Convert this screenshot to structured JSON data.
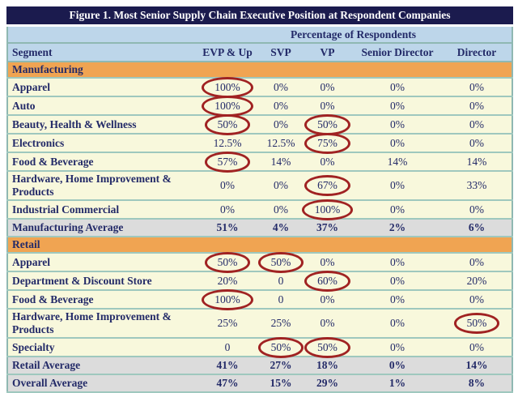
{
  "title": "Figure 1. Most Senior Supply Chain Executive Position at Respondent Companies",
  "header": {
    "group_label": "Percentage of Respondents",
    "columns": [
      "Segment",
      "EVP & Up",
      "SVP",
      "VP",
      "Senior Director",
      "Director"
    ]
  },
  "rows": [
    {
      "type": "section",
      "label": "Manufacturing"
    },
    {
      "type": "data",
      "label": "Apparel",
      "values": [
        "100%",
        "0%",
        "0%",
        "0%",
        "0%"
      ],
      "circled": [
        0
      ]
    },
    {
      "type": "data",
      "label": "Auto",
      "values": [
        "100%",
        "0%",
        "0%",
        "0%",
        "0%"
      ],
      "circled": [
        0
      ]
    },
    {
      "type": "data",
      "label": "Beauty, Health & Wellness",
      "values": [
        "50%",
        "0%",
        "50%",
        "0%",
        "0%"
      ],
      "circled": [
        0,
        2
      ]
    },
    {
      "type": "data",
      "label": "Electronics",
      "values": [
        "12.5%",
        "12.5%",
        "75%",
        "0%",
        "0%"
      ],
      "circled": [
        2
      ]
    },
    {
      "type": "data",
      "label": "Food & Beverage",
      "values": [
        "57%",
        "14%",
        "0%",
        "14%",
        "14%"
      ],
      "circled": [
        0
      ]
    },
    {
      "type": "data",
      "label": "Hardware, Home Improvement & Products",
      "values": [
        "0%",
        "0%",
        "67%",
        "0%",
        "33%"
      ],
      "circled": [
        2
      ]
    },
    {
      "type": "data",
      "label": "Industrial Commercial",
      "values": [
        "0%",
        "0%",
        "100%",
        "0%",
        "0%"
      ],
      "circled": [
        2
      ]
    },
    {
      "type": "average",
      "label": "Manufacturing Average",
      "values": [
        "51%",
        "4%",
        "37%",
        "2%",
        "6%"
      ],
      "circled": []
    },
    {
      "type": "section",
      "label": "Retail"
    },
    {
      "type": "data",
      "label": "Apparel",
      "values": [
        "50%",
        "50%",
        "0%",
        "0%",
        "0%"
      ],
      "circled": [
        0,
        1
      ]
    },
    {
      "type": "data",
      "label": "Department & Discount Store",
      "values": [
        "20%",
        "0",
        "60%",
        "0%",
        "20%"
      ],
      "circled": [
        2
      ]
    },
    {
      "type": "data",
      "label": "Food & Beverage",
      "values": [
        "100%",
        "0",
        "0%",
        "0%",
        "0%"
      ],
      "circled": [
        0
      ]
    },
    {
      "type": "data",
      "label": "Hardware, Home Improvement & Products",
      "values": [
        "25%",
        "25%",
        "0%",
        "0%",
        "50%"
      ],
      "circled": [
        4
      ]
    },
    {
      "type": "data",
      "label": "Specialty",
      "values": [
        "0",
        "50%",
        "50%",
        "0%",
        "0%"
      ],
      "circled": [
        1,
        2
      ]
    },
    {
      "type": "average",
      "label": "Retail Average",
      "values": [
        "41%",
        "27%",
        "18%",
        "0%",
        "14%"
      ],
      "circled": []
    },
    {
      "type": "average",
      "label": "Overall Average",
      "values": [
        "47%",
        "15%",
        "29%",
        "1%",
        "8%"
      ],
      "circled": []
    }
  ],
  "colors": {
    "title_bar_navy": "#1b1b4e",
    "header_blue": "#bdd6ea",
    "section_orange": "#f0a452",
    "row_yellow": "#f8f8dc",
    "average_gray": "#dcdcdc",
    "rule_teal": "#9fc8be",
    "circle_red": "#a02222",
    "text_navy": "#232a68"
  }
}
